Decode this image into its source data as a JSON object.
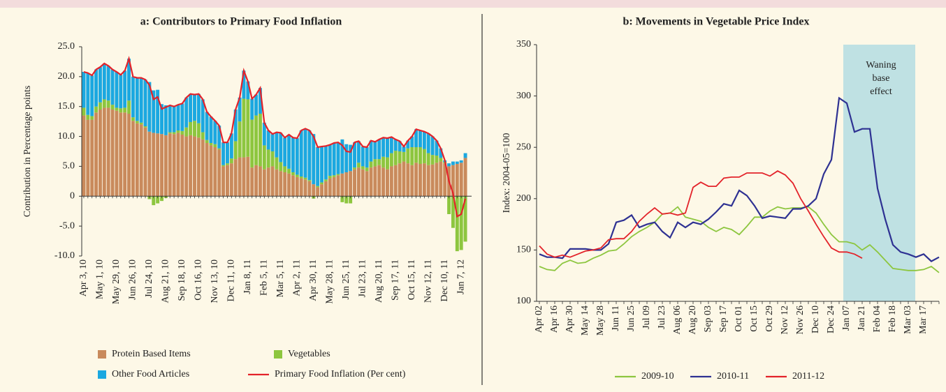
{
  "chart_data": [
    {
      "type": "bar",
      "stacked": true,
      "title": "a: Contributors to Primary Food Inflation",
      "ylabel": "Contribution in Percentage points",
      "categories": [
        "Apr 3, 10",
        null,
        null,
        null,
        "May 1, 10",
        null,
        null,
        null,
        "May 29, 10",
        null,
        null,
        null,
        "Jun 26, 10",
        null,
        null,
        null,
        "Jul 24, 10",
        null,
        null,
        null,
        "Aug 21, 10",
        null,
        null,
        null,
        "Sep 18, 10",
        null,
        null,
        null,
        "Oct 16, 10",
        null,
        null,
        null,
        "Nov 13, 10",
        null,
        null,
        null,
        "Dec 11, 10",
        null,
        null,
        null,
        "Jan 8, 11",
        null,
        null,
        null,
        "Feb 5, 11",
        null,
        null,
        null,
        "Mar 5, 11",
        null,
        null,
        null,
        "Apr 2, 11",
        null,
        null,
        null,
        "Apr 30, 11",
        null,
        null,
        null,
        "May 28, 11",
        null,
        null,
        null,
        "Jun 25, 11",
        null,
        null,
        null,
        "Jul 23, 11",
        null,
        null,
        null,
        "Aug 20, 11",
        null,
        null,
        null,
        "Sep 17, 11",
        null,
        null,
        null,
        "Oct 15, 11",
        null,
        null,
        null,
        "Nov 12, 11",
        null,
        null,
        null,
        "Dec 10, 11",
        null,
        null,
        null,
        "Jan 7, 12",
        null
      ],
      "ylim": [
        -10,
        25
      ],
      "yticks": [
        {
          "value": 25,
          "label": "25.0"
        },
        {
          "value": 20,
          "label": "20.0"
        },
        {
          "value": 15,
          "label": "15.0"
        },
        {
          "value": 10,
          "label": "10.0"
        },
        {
          "value": 5,
          "label": "5.0"
        },
        0,
        {
          "value": -5,
          "label": "-5.0"
        },
        {
          "value": -10,
          "label": "-10.0"
        }
      ],
      "series": [
        {
          "name": "Protein Based Items",
          "type": "bar",
          "color": "#c98a5c",
          "values": [
            13.5,
            12.8,
            12.8,
            14.0,
            14.5,
            14.8,
            14.8,
            14.5,
            14.3,
            14.0,
            14.0,
            13.8,
            12.6,
            12.2,
            12.0,
            11.5,
            10.8,
            10.6,
            10.5,
            10.4,
            10.2,
            10.5,
            10.4,
            10.6,
            10.3,
            10.0,
            10.2,
            10.0,
            9.8,
            9.5,
            8.9,
            8.5,
            8.2,
            7.8,
            5.0,
            5.2,
            5.5,
            6.2,
            6.5,
            6.5,
            6.6,
            4.8,
            5.2,
            5.0,
            4.5,
            4.8,
            5.0,
            4.5,
            4.2,
            4.0,
            3.8,
            3.5,
            3.2,
            3.0,
            2.8,
            2.5,
            2.0,
            1.5,
            2.0,
            2.5,
            3.0,
            3.2,
            3.5,
            3.8,
            4.0,
            4.2,
            4.5,
            4.8,
            4.5,
            4.2,
            4.8,
            5.0,
            5.2,
            4.8,
            4.5,
            5.0,
            5.2,
            5.5,
            5.8,
            5.5,
            5.2,
            5.6,
            5.4,
            5.5,
            5.2,
            5.3,
            5.6,
            5.8,
            5.5,
            5.0,
            5.2,
            5.4,
            5.6,
            6.4
          ]
        },
        {
          "name": "Vegetables",
          "type": "bar",
          "color": "#8dc63f",
          "values": [
            1.3,
            0.8,
            0.6,
            1.0,
            1.2,
            1.4,
            1.2,
            0.8,
            0.5,
            0.7,
            0.8,
            2.2,
            0.6,
            0.4,
            0.3,
            0.2,
            -0.5,
            -1.5,
            -1.2,
            -0.8,
            -0.3,
            0.2,
            0.3,
            0.4,
            0.6,
            1.5,
            2.2,
            2.6,
            2.4,
            1.2,
            0.5,
            0.4,
            0.5,
            0.2,
            0.2,
            0.3,
            0.8,
            3.0,
            6.0,
            9.8,
            9.6,
            8.0,
            8.3,
            8.8,
            4.0,
            3.0,
            2.5,
            2.0,
            1.5,
            1.0,
            0.8,
            0.5,
            0.4,
            0.3,
            0.3,
            0.2,
            -0.4,
            0.2,
            0.3,
            0.3,
            0.4,
            0.3,
            0.2,
            -1.0,
            -1.2,
            -1.2,
            0.3,
            0.8,
            0.5,
            0.6,
            1.0,
            1.2,
            1.0,
            1.8,
            2.0,
            2.2,
            2.4,
            2.0,
            1.6,
            2.5,
            3.0,
            2.6,
            2.8,
            2.4,
            2.0,
            1.6,
            1.2,
            0.6,
            0.2,
            -3.0,
            -5.3,
            -9.2,
            -9.0,
            -7.6
          ]
        },
        {
          "name": "Other Food Articles",
          "type": "bar",
          "color": "#1ba8e0",
          "values": [
            6.0,
            7.0,
            6.8,
            6.2,
            5.9,
            6.0,
            5.8,
            5.9,
            6.0,
            5.6,
            6.2,
            7.0,
            6.8,
            7.2,
            7.5,
            7.8,
            8.3,
            7.1,
            7.3,
            5.0,
            5.0,
            4.5,
            4.3,
            4.3,
            4.6,
            5.0,
            4.7,
            4.4,
            4.9,
            5.5,
            4.7,
            4.4,
            3.9,
            3.8,
            3.8,
            3.5,
            4.2,
            5.3,
            4.0,
            4.7,
            3.0,
            3.5,
            3.5,
            4.3,
            3.8,
            3.2,
            2.9,
            4.2,
            4.9,
            4.8,
            5.7,
            5.8,
            6.1,
            7.7,
            8.2,
            8.3,
            8.4,
            6.5,
            6.0,
            5.6,
            5.2,
            5.4,
            5.3,
            5.7,
            4.7,
            4.4,
            4.2,
            3.6,
            3.3,
            3.4,
            3.5,
            2.9,
            3.3,
            3.2,
            3.2,
            2.7,
            1.9,
            1.7,
            0.9,
            1.3,
            1.8,
            3.0,
            2.8,
            2.9,
            3.3,
            3.1,
            2.5,
            1.6,
            0.3,
            0.5,
            0.6,
            0.4,
            0.4,
            0.8
          ]
        },
        {
          "name": "Primary Food Inflation (Per cent)",
          "type": "line",
          "color": "#e3232a",
          "values": [
            20.8,
            20.6,
            20.2,
            21.2,
            21.6,
            22.2,
            21.8,
            21.2,
            20.8,
            20.3,
            21.0,
            23.0,
            20.0,
            19.8,
            19.8,
            19.5,
            18.6,
            16.2,
            16.6,
            14.6,
            14.9,
            15.2,
            15.0,
            15.3,
            15.5,
            16.5,
            17.1,
            17.0,
            17.1,
            16.2,
            14.1,
            13.3,
            12.6,
            11.8,
            9.0,
            9.0,
            10.5,
            14.5,
            16.5,
            21.0,
            19.2,
            16.3,
            17.0,
            18.1,
            12.3,
            11.0,
            10.4,
            10.7,
            10.6,
            9.8,
            10.3,
            9.8,
            9.7,
            11.0,
            11.3,
            11.0,
            10.0,
            8.2,
            8.3,
            8.4,
            8.6,
            8.9,
            9.0,
            8.5,
            7.5,
            7.4,
            9.0,
            9.2,
            8.3,
            8.2,
            9.3,
            9.1,
            9.5,
            9.8,
            9.7,
            9.9,
            9.5,
            9.2,
            8.3,
            9.3,
            10.0,
            11.2,
            11.0,
            10.8,
            10.5,
            10.0,
            9.3,
            8.0,
            6.0,
            2.5,
            0.5,
            -3.4,
            -3.0,
            -0.4
          ]
        }
      ]
    },
    {
      "type": "line",
      "title": "b: Movements in Vegetable Price Index",
      "ylabel": "Index: 2004-05=100",
      "categories": [
        "Apr 02",
        null,
        "Apr 16",
        null,
        "Apr 30",
        null,
        "May 14",
        null,
        "May 28",
        null,
        "Jun 11",
        null,
        "Jun 25",
        null,
        "Jul 09",
        null,
        "Jul 23",
        null,
        "Aug 06",
        null,
        "Aug 20",
        null,
        "Sep 03",
        null,
        "Sep 17",
        null,
        "Oct 01",
        null,
        "Oct 15",
        null,
        "Oct 29",
        null,
        "Nov 12",
        null,
        "Nov 26",
        null,
        "Dec 10",
        null,
        "Dec 24",
        null,
        "Jan 07",
        null,
        "Jan 21",
        null,
        "Feb 04",
        null,
        "Feb 18",
        null,
        "Mar 03",
        null,
        "Mar 17",
        null,
        null
      ],
      "ylim": [
        100,
        350
      ],
      "yticks": [
        100,
        150,
        200,
        250,
        300,
        350
      ],
      "annotation": {
        "lines": [
          "Waning",
          "base",
          "effect"
        ],
        "span": [
          "Jan 07",
          "Mar 03"
        ],
        "color": "#bfe1e3"
      },
      "series": [
        {
          "name": "2009-10",
          "color": "#8dc63f",
          "values": [
            134,
            131,
            130,
            137,
            140,
            137,
            138,
            142,
            145,
            149,
            150,
            156,
            163,
            168,
            172,
            177,
            185,
            186,
            192,
            182,
            180,
            178,
            172,
            168,
            172,
            170,
            165,
            173,
            182,
            182,
            188,
            192,
            190,
            191,
            191,
            192,
            186,
            175,
            165,
            158,
            158,
            156,
            150,
            155,
            148,
            140,
            132,
            131,
            130,
            130,
            131,
            134,
            128
          ]
        },
        {
          "name": "2010-11",
          "color": "#2e3192",
          "values": [
            146,
            143,
            143,
            142,
            151,
            151,
            151,
            150,
            150,
            156,
            177,
            179,
            184,
            172,
            175,
            177,
            168,
            162,
            177,
            172,
            177,
            175,
            180,
            187,
            195,
            193,
            208,
            203,
            193,
            181,
            183,
            182,
            181,
            190,
            190,
            193,
            200,
            224,
            238,
            298,
            293,
            265,
            268,
            268,
            210,
            180,
            155,
            148,
            146,
            143,
            146,
            139,
            143
          ]
        },
        {
          "name": "2011-12",
          "color": "#e3232a",
          "values": [
            154,
            146,
            143,
            145,
            143,
            146,
            149,
            150,
            152,
            160,
            161,
            161,
            168,
            178,
            185,
            191,
            185,
            186,
            184,
            186,
            211,
            216,
            212,
            212,
            220,
            221,
            221,
            225,
            225,
            225,
            222,
            227,
            223,
            215,
            200,
            188,
            175,
            163,
            152,
            148,
            148,
            146,
            142,
            null,
            null,
            null,
            null,
            null,
            null,
            null,
            null,
            null,
            null
          ]
        }
      ]
    }
  ]
}
